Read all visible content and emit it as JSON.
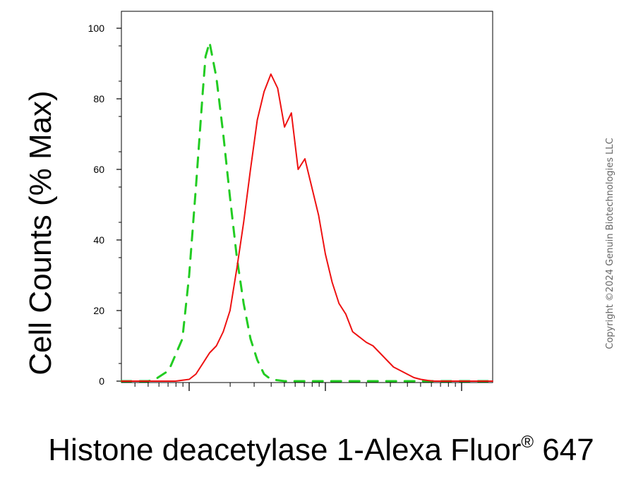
{
  "chart_data": {
    "type": "line",
    "xlabel_main": "Histone deacetylase 1-Alexa Fluor",
    "xlabel_sup": "®",
    "xlabel_suffix": " 647",
    "ylabel": "Cell Counts (% Max)",
    "x_scale": "log",
    "ylim": [
      0,
      100
    ],
    "y_ticks": [
      "0",
      "20",
      "40",
      "60",
      "80",
      "100"
    ],
    "x_ticks": [],
    "copyright": "Copyright ©2024 Genuin Biotechnologies LLC",
    "series": [
      {
        "style": "dashed",
        "color": "#22cc22",
        "x": [
          -0.5,
          -0.3,
          -0.25,
          -0.15,
          -0.05,
          0.0,
          0.05,
          0.1,
          0.12,
          0.15,
          0.2,
          0.25,
          0.3,
          0.35,
          0.4,
          0.45,
          0.5,
          0.55,
          0.6,
          0.7,
          1.0,
          2.0,
          2.5
        ],
        "y": [
          0,
          0,
          0.5,
          3,
          12,
          30,
          55,
          82,
          92,
          96,
          86,
          70,
          52,
          35,
          22,
          12,
          6,
          2,
          0.5,
          0,
          0,
          0,
          0
        ]
      },
      {
        "style": "solid",
        "color": "#ee1111",
        "x": [
          -0.5,
          -0.1,
          0.0,
          0.05,
          0.1,
          0.15,
          0.2,
          0.25,
          0.3,
          0.35,
          0.4,
          0.45,
          0.5,
          0.55,
          0.6,
          0.65,
          0.7,
          0.75,
          0.8,
          0.85,
          0.9,
          0.95,
          1.0,
          1.05,
          1.1,
          1.15,
          1.2,
          1.3,
          1.35,
          1.4,
          1.45,
          1.5,
          1.55,
          1.6,
          1.65,
          1.7,
          1.75,
          1.8,
          1.9,
          2.0,
          2.2,
          2.5
        ],
        "y": [
          0,
          0,
          0.5,
          2,
          5,
          8,
          10,
          14,
          20,
          32,
          45,
          60,
          74,
          82,
          87,
          83,
          72,
          76,
          60,
          63,
          55,
          47,
          36,
          28,
          22,
          19,
          14,
          11,
          10,
          8,
          6,
          4,
          3,
          2,
          1,
          0.5,
          0.2,
          0,
          0,
          0,
          0,
          0
        ]
      }
    ]
  }
}
